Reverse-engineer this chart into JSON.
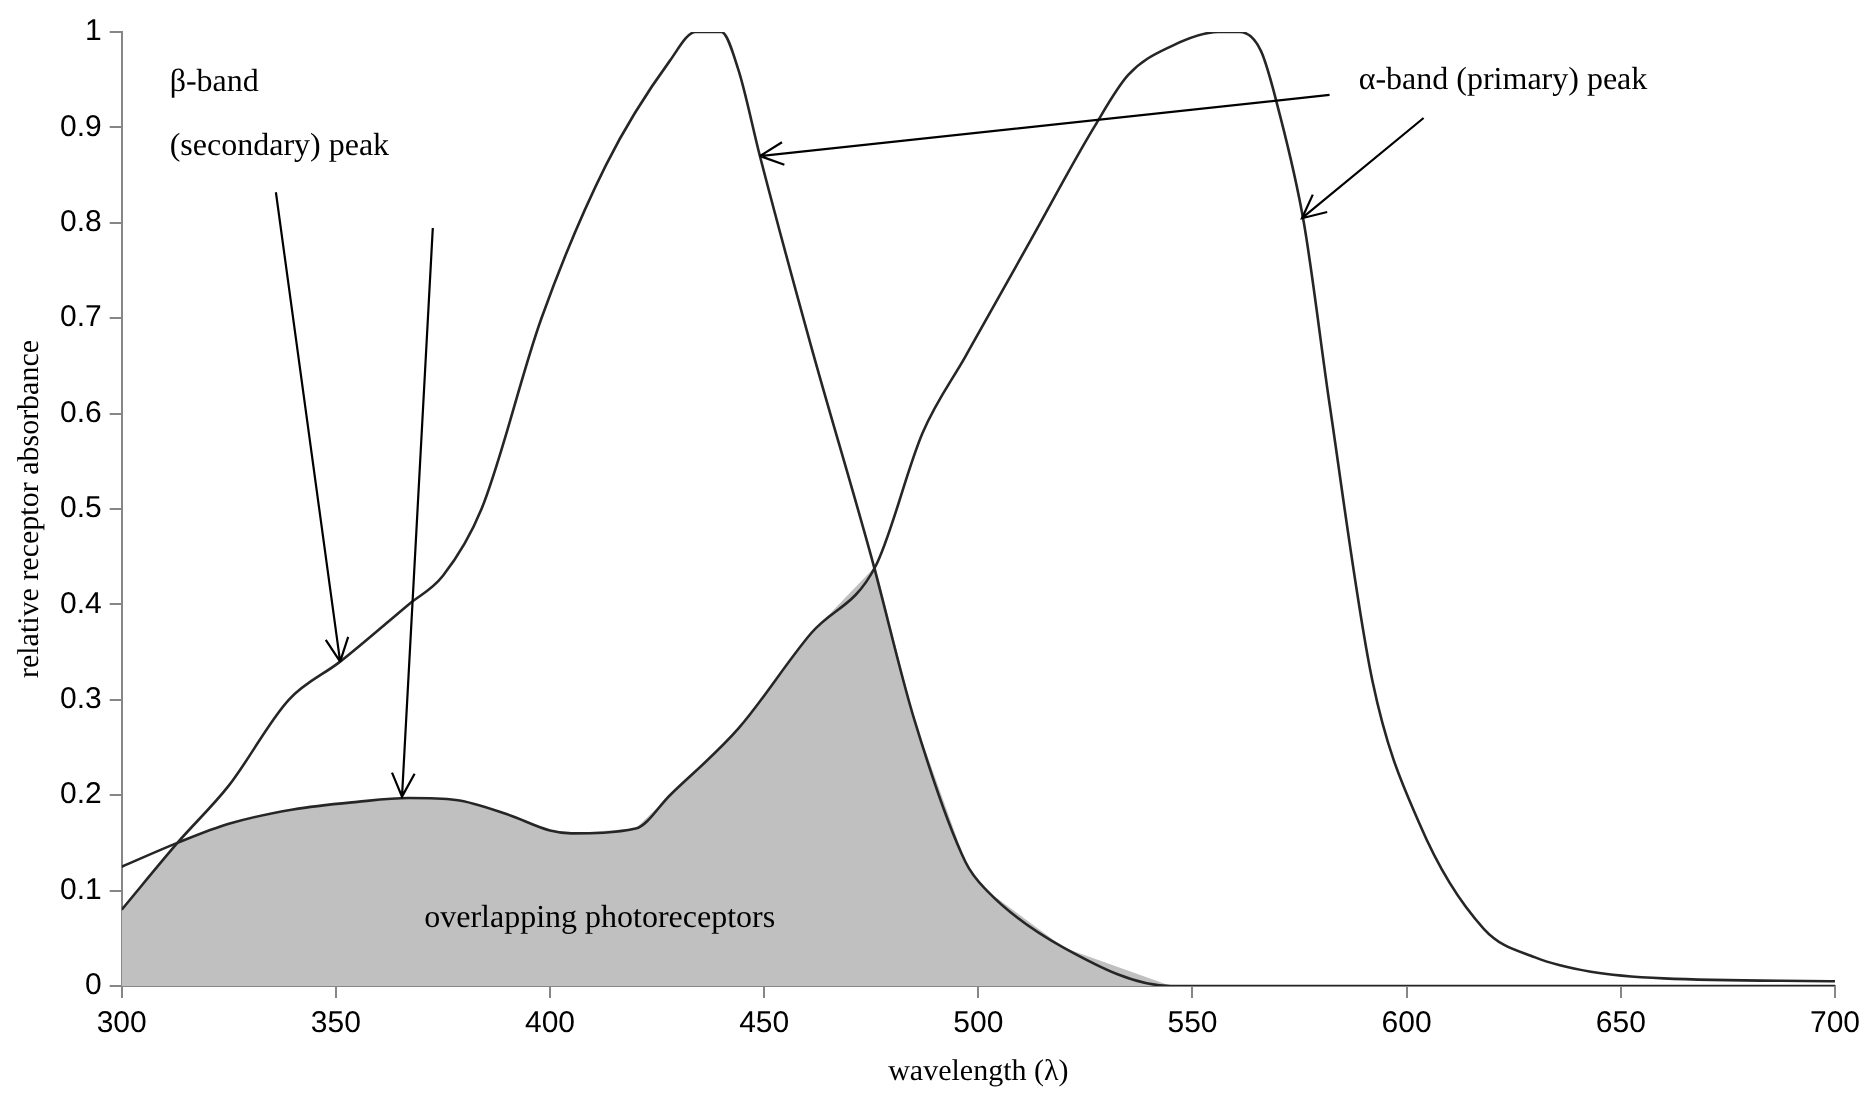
{
  "chart_data": {
    "type": "line",
    "xlabel": "wavelength (λ)",
    "ylabel": "relative receptor absorbance",
    "xlim": [
      300,
      700
    ],
    "xticks": [
      300,
      350,
      400,
      450,
      500,
      550,
      600,
      650,
      700
    ],
    "ylim": [
      0,
      1
    ],
    "yticks": [
      0,
      0.1,
      0.2,
      0.3,
      0.4,
      0.5,
      0.6,
      0.7,
      0.8,
      0.9,
      1
    ],
    "grid": false,
    "legend": false,
    "marker": "none",
    "line_style": "solid",
    "series": [
      {
        "type": "area",
        "color": "#c0c0c0",
        "x": [
          300,
          313,
          325,
          340,
          355,
          367,
          378,
          390,
          400,
          405,
          420,
          428,
          444,
          461,
          476,
          485,
          497,
          502,
          520,
          545,
          700
        ],
        "values": [
          0.08,
          0.15,
          0.17,
          0.185,
          0.193,
          0.197,
          0.195,
          0.18,
          0.163,
          0.16,
          0.165,
          0.2,
          0.27,
          0.37,
          0.44,
          0.28,
          0.13,
          0.1,
          0.04,
          0,
          0
        ]
      },
      {
        "type": "line",
        "color": "#262626",
        "x": [
          300,
          313,
          325,
          339,
          351,
          367,
          375,
          384,
          398,
          413,
          428,
          434,
          440,
          444,
          449,
          461,
          475,
          485,
          497,
          502,
          520,
          545,
          600,
          700
        ],
        "values": [
          0.08,
          0.15,
          0.21,
          0.3,
          0.34,
          0.4,
          0.43,
          0.5,
          0.7,
          0.86,
          0.97,
          1,
          1,
          0.96,
          0.87,
          0.67,
          0.45,
          0.28,
          0.13,
          0.1,
          0.04,
          0,
          0,
          0
        ]
      },
      {
        "type": "line",
        "color": "#262626",
        "x": [
          300,
          313,
          325,
          340,
          355,
          367,
          378,
          390,
          400,
          405,
          420,
          428,
          444,
          461,
          476,
          487,
          497,
          512,
          527,
          535,
          545,
          556,
          561,
          566,
          570,
          576,
          582,
          592,
          603,
          618,
          630,
          643,
          660,
          700
        ],
        "values": [
          0.125,
          0.15,
          0.17,
          0.185,
          0.193,
          0.197,
          0.195,
          0.18,
          0.163,
          0.16,
          0.165,
          0.2,
          0.27,
          0.37,
          0.44,
          0.58,
          0.66,
          0.78,
          0.9,
          0.955,
          0.985,
          1,
          1,
          0.98,
          0.92,
          0.8,
          0.61,
          0.32,
          0.17,
          0.06,
          0.03,
          0.015,
          0.008,
          0.005
        ]
      }
    ],
    "annotations": [
      {
        "text": "β-band (secondary) peak",
        "x": 351,
        "y": 0.34
      },
      {
        "text": "α-band (primary) peak",
        "x": 449,
        "y": 0.87
      },
      "overlapping photoreceptors"
    ]
  }
}
